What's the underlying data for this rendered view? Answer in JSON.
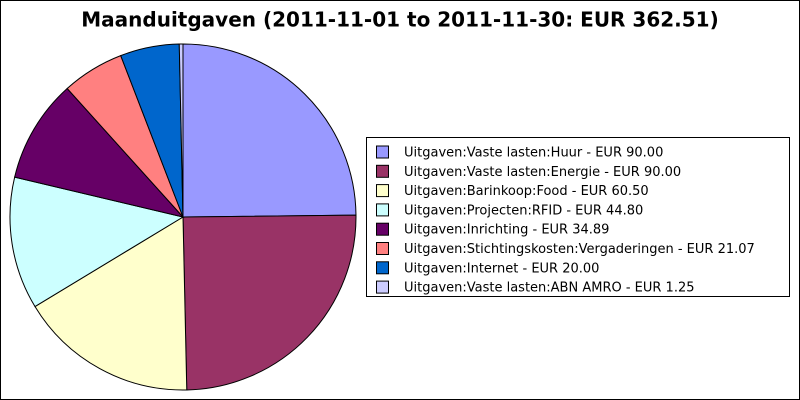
{
  "chart_data": {
    "type": "pie",
    "title": "Maanduitgaven (2011-11-01 to 2011-11-30: EUR 362.51)",
    "categories": [
      "Uitgaven:Vaste lasten:Huur - EUR 90.00",
      "Uitgaven:Vaste lasten:Energie - EUR 90.00",
      "Uitgaven:Barinkoop:Food - EUR 60.50",
      "Uitgaven:Projecten:RFID - EUR 44.80",
      "Uitgaven:Inrichting - EUR 34.89",
      "Uitgaven:Stichtingskosten:Vergaderingen - EUR 21.07",
      "Uitgaven:Internet - EUR 20.00",
      "Uitgaven:Vaste lasten:ABN AMRO - EUR 1.25"
    ],
    "values": [
      90.0,
      90.0,
      60.5,
      44.8,
      34.89,
      21.07,
      20.0,
      1.25
    ],
    "colors": [
      "#9999ff",
      "#993366",
      "#ffffcc",
      "#ccffff",
      "#660066",
      "#ff8080",
      "#0066cc",
      "#ccccff"
    ],
    "legend": "right"
  }
}
